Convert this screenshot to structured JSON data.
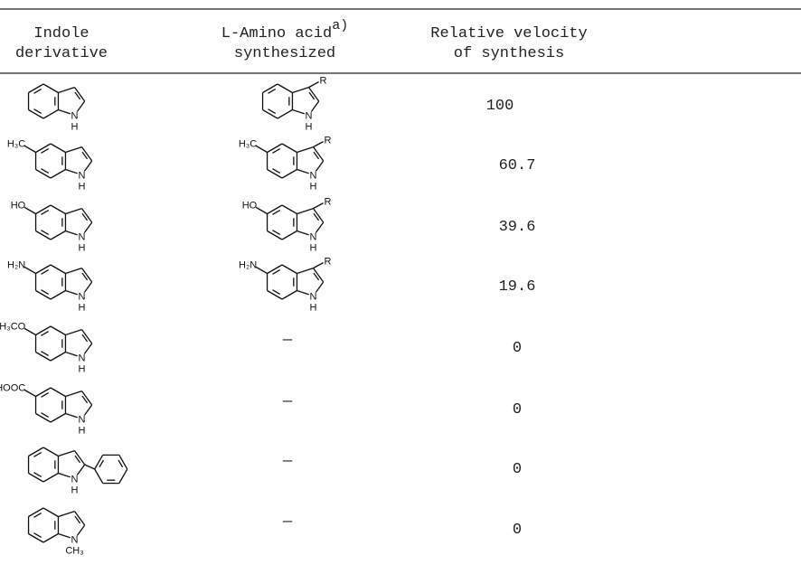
{
  "table": {
    "headers": [
      {
        "lines": [
          "Indole",
          "derivative"
        ]
      },
      {
        "lines": [
          "L-Amino acid",
          "synthesized"
        ],
        "note": "a)"
      },
      {
        "lines": [
          "Relative velocity",
          "of synthesis"
        ]
      }
    ],
    "rows": [
      [
        {
          "n": "N",
          "n_sub": "H"
        },
        {
          "n": "N",
          "n_sub": "H",
          "r": "R"
        },
        100
      ],
      [
        {
          "substituent": "H₃C",
          "n": "N",
          "n_sub": "H"
        },
        {
          "substituent": "H₃C",
          "n": "N",
          "n_sub": "H",
          "r": "R"
        },
        60.7
      ],
      [
        {
          "substituent": "HO",
          "n": "N",
          "n_sub": "H"
        },
        {
          "substituent": "HO",
          "n": "N",
          "n_sub": "H",
          "r": "R"
        },
        39.6
      ],
      [
        {
          "substituent": "H₂N",
          "n": "N",
          "n_sub": "H"
        },
        {
          "substituent": "H₂N",
          "n": "N",
          "n_sub": "H",
          "r": "R"
        },
        19.6
      ],
      [
        {
          "substituent": "H₃CO",
          "n": "N",
          "n_sub": "H"
        },
        "—",
        0
      ],
      [
        {
          "substituent": "HOOC",
          "n": "N",
          "n_sub": "H"
        },
        "—",
        0
      ],
      [
        {
          "n": "N",
          "n_sub": "H"
        },
        "—",
        0
      ],
      [
        {
          "n": "N",
          "n_sub": "CH₃"
        },
        "—",
        0
      ]
    ]
  }
}
